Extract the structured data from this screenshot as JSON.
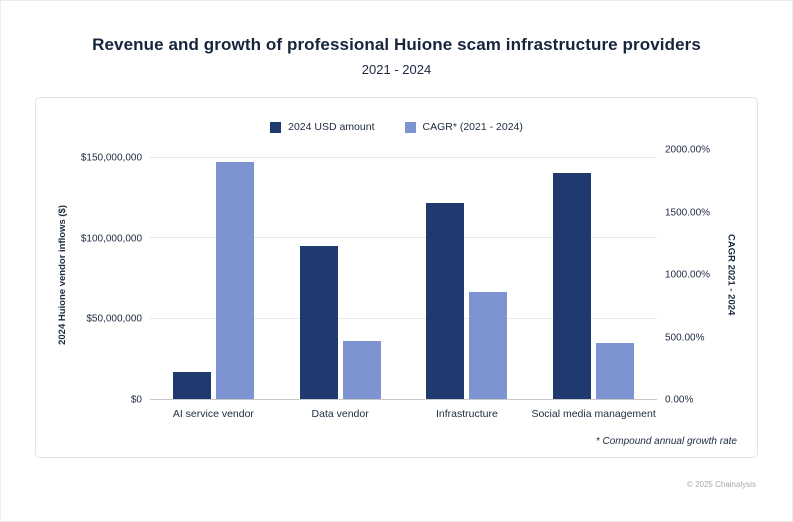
{
  "page": {
    "title": "Revenue and growth of professional Huione scam infrastructure providers",
    "subtitle": "2021 - 2024",
    "copyright": "© 2025 Chainalysis"
  },
  "chart_data": {
    "type": "bar",
    "title": "Revenue and growth of professional Huione scam infrastructure providers",
    "subtitle": "2021 - 2024",
    "categories": [
      "AI service vendor",
      "Data vendor",
      "Infrastructure",
      "Social media management"
    ],
    "series": [
      {
        "name": "2024 USD amount",
        "axis": "left",
        "color": "#1e3a6e",
        "values": [
          17000000,
          95000000,
          122000000,
          141000000
        ]
      },
      {
        "name": "CAGR* (2021 - 2024)",
        "axis": "right",
        "color": "#7e94d2",
        "values": [
          1900,
          470,
          860,
          450
        ]
      }
    ],
    "left_axis": {
      "label": "2024 Huione vendor inflows ($)",
      "tick_values": [
        0,
        50000000,
        100000000,
        150000000
      ],
      "tick_labels": [
        "$0",
        "$50,000,000",
        "$100,000,000",
        "$150,000,000"
      ],
      "plot_max": 155000000
    },
    "right_axis": {
      "label": "CAGR 2021 - 2024",
      "tick_values": [
        0,
        500,
        1000,
        1500,
        2000
      ],
      "tick_labels": [
        "0.00%",
        "500.00%",
        "1000.00%",
        "1500.00%",
        "2000.00%"
      ],
      "plot_max": 2000
    },
    "footnote": "* Compound annual growth rate",
    "legend_position": "top",
    "grid": true
  },
  "colors": {
    "gridline": "#e7e7e7",
    "axis_line": "#c9c9c9"
  }
}
